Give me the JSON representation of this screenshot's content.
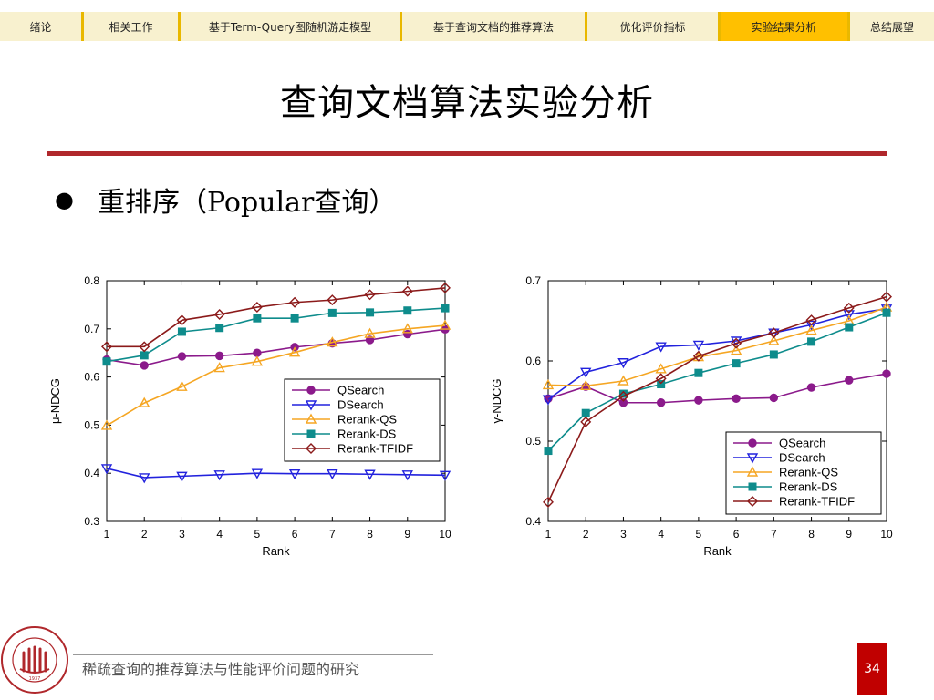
{
  "nav": {
    "items": [
      {
        "label": "绪论",
        "active": false
      },
      {
        "label": "相关工作",
        "active": false
      },
      {
        "label": "基于Term-Query图随机游走模型",
        "active": false
      },
      {
        "label": "基于查询文档的推荐算法",
        "active": false
      },
      {
        "label": "优化评价指标",
        "active": false
      },
      {
        "label": "实验结果分析",
        "active": true
      },
      {
        "label": "总结展望",
        "active": false
      }
    ]
  },
  "slide": {
    "title": "查询文档算法实验分析",
    "bullet": "重排序（Popular查询）",
    "footer": "稀疏查询的推荐算法与性能评价问题的研究",
    "page_number": "34",
    "logo_text": "RENMIN UNIVERSITY OF CHINA",
    "logo_year": "1937"
  },
  "colors": {
    "accent_rule": "#b0282c",
    "nav_bg": "#f8f1cf",
    "nav_active": "#ffc000",
    "page_box": "#c00000"
  },
  "chart_data": [
    {
      "type": "line",
      "xlabel": "Rank",
      "ylabel": "μ-NDCG",
      "x": [
        1,
        2,
        3,
        4,
        5,
        6,
        7,
        8,
        9,
        10
      ],
      "ylim": [
        0.3,
        0.8
      ],
      "yticks": [
        "0.3",
        "0.4",
        "0.5",
        "0.6",
        "0.7",
        "0.8"
      ],
      "legend_position": "bottom-right",
      "series": [
        {
          "name": "QSearch",
          "color": "#8b1a8b",
          "marker": "circle",
          "values": [
            0.636,
            0.624,
            0.643,
            0.644,
            0.65,
            0.662,
            0.67,
            0.677,
            0.689,
            0.699
          ]
        },
        {
          "name": "DSearch",
          "color": "#2222dd",
          "marker": "triangle-down",
          "values": [
            0.41,
            0.391,
            0.394,
            0.397,
            0.4,
            0.399,
            0.399,
            0.398,
            0.397,
            0.396
          ]
        },
        {
          "name": "Rerank-QS",
          "color": "#f5a623",
          "marker": "triangle-up",
          "values": [
            0.499,
            0.546,
            0.58,
            0.619,
            0.632,
            0.651,
            0.672,
            0.69,
            0.7,
            0.707
          ]
        },
        {
          "name": "Rerank-DS",
          "color": "#0e8c8c",
          "marker": "square",
          "values": [
            0.632,
            0.645,
            0.694,
            0.702,
            0.722,
            0.722,
            0.733,
            0.734,
            0.738,
            0.743
          ]
        },
        {
          "name": "Rerank-TFIDF",
          "color": "#8b1a1a",
          "marker": "diamond",
          "values": [
            0.663,
            0.663,
            0.718,
            0.73,
            0.745,
            0.755,
            0.76,
            0.771,
            0.778,
            0.785
          ]
        }
      ]
    },
    {
      "type": "line",
      "xlabel": "Rank",
      "ylabel": "γ-NDCG",
      "x": [
        1,
        2,
        3,
        4,
        5,
        6,
        7,
        8,
        9,
        10
      ],
      "ylim": [
        0.4,
        0.7
      ],
      "yticks": [
        "0.4",
        "0.5",
        "0.6",
        "0.7"
      ],
      "legend_position": "bottom-right",
      "series": [
        {
          "name": "QSearch",
          "color": "#8b1a8b",
          "marker": "circle",
          "values": [
            0.553,
            0.568,
            0.548,
            0.548,
            0.551,
            0.553,
            0.554,
            0.567,
            0.576,
            0.584
          ]
        },
        {
          "name": "DSearch",
          "color": "#2222dd",
          "marker": "triangle-down",
          "values": [
            0.552,
            0.586,
            0.598,
            0.618,
            0.62,
            0.625,
            0.635,
            0.645,
            0.658,
            0.665
          ]
        },
        {
          "name": "Rerank-QS",
          "color": "#f5a623",
          "marker": "triangle-up",
          "values": [
            0.57,
            0.569,
            0.575,
            0.59,
            0.605,
            0.613,
            0.625,
            0.638,
            0.65,
            0.667
          ]
        },
        {
          "name": "Rerank-DS",
          "color": "#0e8c8c",
          "marker": "square",
          "values": [
            0.488,
            0.535,
            0.559,
            0.571,
            0.585,
            0.597,
            0.608,
            0.624,
            0.642,
            0.66
          ]
        },
        {
          "name": "Rerank-TFIDF",
          "color": "#8b1a1a",
          "marker": "diamond",
          "values": [
            0.424,
            0.524,
            0.556,
            0.578,
            0.606,
            0.622,
            0.635,
            0.651,
            0.666,
            0.68
          ]
        }
      ]
    }
  ]
}
